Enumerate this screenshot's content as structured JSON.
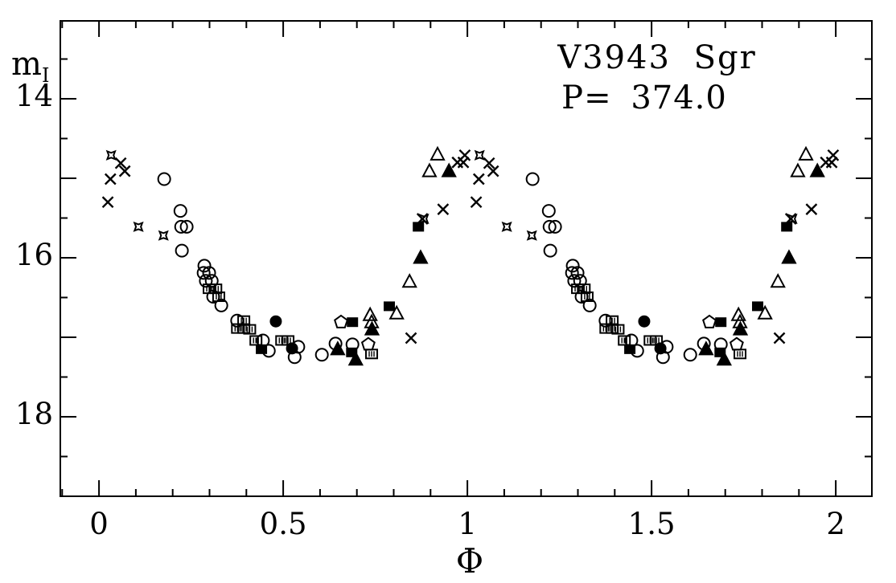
{
  "figure": {
    "title_line1": "V3943 Sgr",
    "title_line2": "P= 374.0",
    "y_axis_label": "m",
    "y_axis_label_sub": "I",
    "x_axis_label": "Φ"
  },
  "chart_data": {
    "type": "scatter",
    "title": "V3943 Sgr",
    "subtitle": "P= 374.0",
    "xlabel": "Φ",
    "ylabel": "m_I",
    "x_range": [
      -0.105,
      2.098
    ],
    "y_range": [
      13.02,
      19.0
    ],
    "y_axis_inverted_magnitude": true,
    "grid": false,
    "legend": "none",
    "phase_duplicated": true,
    "x_ticks": [
      {
        "value": 0,
        "label": "0"
      },
      {
        "value": 0.5,
        "label": "0.5"
      },
      {
        "value": 1,
        "label": "1"
      },
      {
        "value": 1.5,
        "label": "1.5"
      },
      {
        "value": 2,
        "label": "2"
      }
    ],
    "x_minor_step": 0.1,
    "y_major_ticks": [
      14,
      15,
      16,
      17,
      18
    ],
    "y_minor_ticks": [
      13.5,
      14.5,
      15.5,
      16.5,
      17.5,
      18.5
    ],
    "y_ticks": [
      {
        "value": 14,
        "label": "14"
      },
      {
        "value": 16,
        "label": "16"
      },
      {
        "value": 18,
        "label": "18"
      }
    ],
    "series": [
      {
        "name": "crosses",
        "symbol": "cross",
        "points": [
          [
            0.059,
            14.81
          ],
          [
            0.07,
            14.91
          ],
          [
            0.031,
            15.01
          ],
          [
            0.024,
            15.3
          ],
          [
            0.934,
            15.39
          ],
          [
            0.878,
            15.51
          ],
          [
            0.847,
            17.01
          ],
          [
            0.973,
            14.8
          ],
          [
            0.989,
            14.8
          ],
          [
            0.993,
            14.71
          ]
        ]
      },
      {
        "name": "four-point-stars",
        "symbol": "star4",
        "points": [
          [
            0.033,
            14.71
          ],
          [
            0.107,
            15.61
          ],
          [
            0.175,
            15.72
          ],
          [
            0.882,
            15.51
          ]
        ]
      },
      {
        "name": "open-circles",
        "symbol": "circle-open",
        "points": [
          [
            0.177,
            15.01
          ],
          [
            0.221,
            15.41
          ],
          [
            0.223,
            15.61
          ],
          [
            0.238,
            15.61
          ],
          [
            0.225,
            15.91
          ],
          [
            0.286,
            16.1
          ],
          [
            0.284,
            16.19
          ],
          [
            0.299,
            16.19
          ],
          [
            0.29,
            16.29
          ],
          [
            0.306,
            16.29
          ],
          [
            0.31,
            16.49
          ],
          [
            0.332,
            16.6
          ],
          [
            0.375,
            16.79
          ],
          [
            0.445,
            17.04
          ],
          [
            0.461,
            17.17
          ],
          [
            0.541,
            17.12
          ],
          [
            0.531,
            17.25
          ],
          [
            0.605,
            17.22
          ],
          [
            0.642,
            17.08
          ],
          [
            0.688,
            17.09
          ]
        ]
      },
      {
        "name": "filled-circles",
        "symbol": "circle-filled",
        "points": [
          [
            0.48,
            16.8
          ],
          [
            0.524,
            17.14
          ]
        ]
      },
      {
        "name": "open-triangles",
        "symbol": "triangle-open",
        "points": [
          [
            0.736,
            16.72
          ],
          [
            0.74,
            16.81
          ],
          [
            0.808,
            16.7
          ],
          [
            0.843,
            16.3
          ],
          [
            0.897,
            14.91
          ],
          [
            0.919,
            14.7
          ]
        ]
      },
      {
        "name": "filled-triangles",
        "symbol": "triangle-filled",
        "points": [
          [
            0.648,
            17.15
          ],
          [
            0.697,
            17.28
          ],
          [
            0.741,
            16.9
          ],
          [
            0.873,
            16.0
          ],
          [
            0.95,
            14.91
          ]
        ]
      },
      {
        "name": "filled-squares",
        "symbol": "square-filled",
        "points": [
          [
            0.441,
            17.15
          ],
          [
            0.686,
            17.19
          ],
          [
            0.688,
            16.81
          ],
          [
            0.788,
            16.61
          ],
          [
            0.867,
            15.61
          ]
        ]
      },
      {
        "name": "hatched-squares",
        "symbol": "square-hatched",
        "points": [
          [
            0.299,
            16.39
          ],
          [
            0.317,
            16.39
          ],
          [
            0.325,
            16.49
          ],
          [
            0.393,
            16.79
          ],
          [
            0.376,
            16.89
          ],
          [
            0.393,
            16.89
          ],
          [
            0.409,
            16.9
          ],
          [
            0.426,
            17.04
          ],
          [
            0.496,
            17.04
          ],
          [
            0.513,
            17.04
          ],
          [
            0.74,
            17.21
          ]
        ]
      },
      {
        "name": "open-pentagons",
        "symbol": "pentagon-open",
        "points": [
          [
            0.657,
            16.81
          ],
          [
            0.731,
            17.09
          ]
        ]
      }
    ],
    "colors": {
      "foreground": "#000000",
      "background": "#ffffff"
    }
  }
}
